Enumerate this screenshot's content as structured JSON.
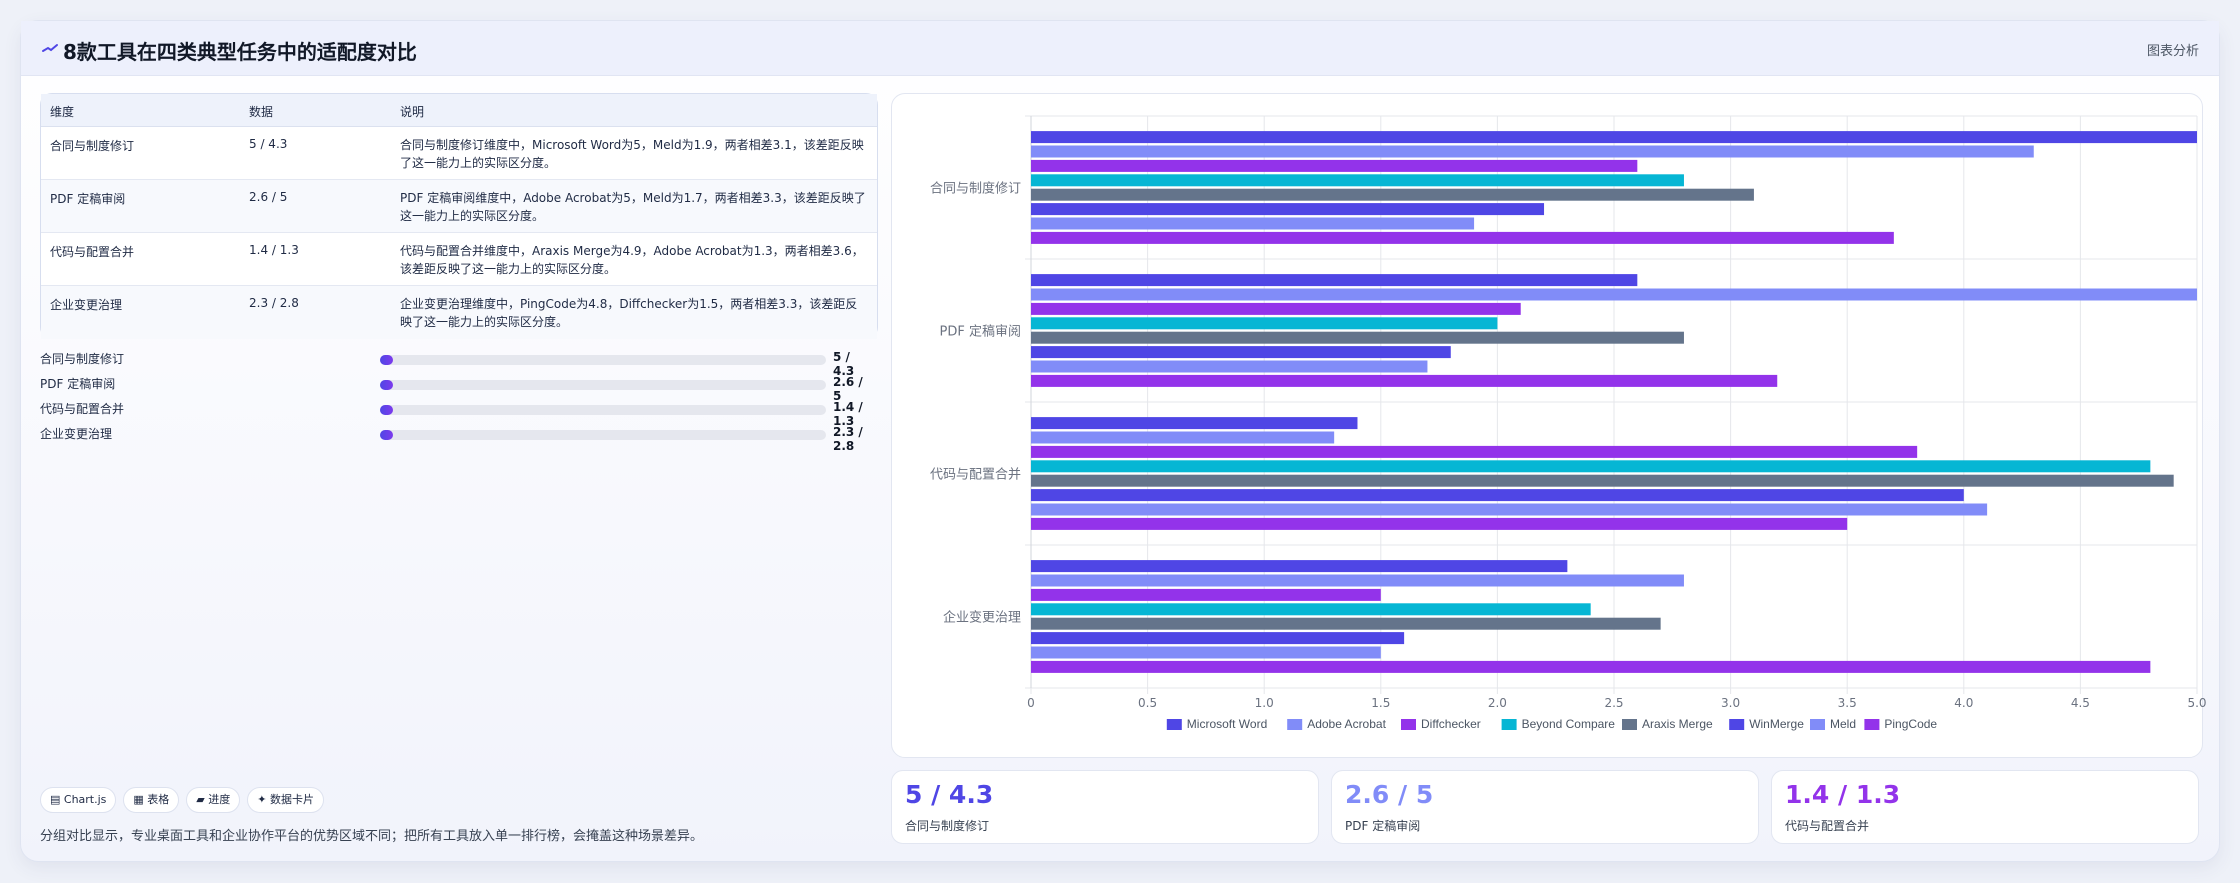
{
  "header": {
    "title": "8款工具在四类典型任务中的适配度对比",
    "right_label": "图表分析"
  },
  "table": {
    "headers": [
      "维度",
      "数据",
      "说明"
    ],
    "rows": [
      {
        "dim": "合同与制度修订",
        "data": "5 / 4.3",
        "desc": "合同与制度修订维度中，Microsoft Word为5，Meld为1.9，两者相差3.1，该差距反映了这一能力上的实际区分度。"
      },
      {
        "dim": "PDF 定稿审阅",
        "data": "2.6 / 5",
        "desc": "PDF 定稿审阅维度中，Adobe Acrobat为5，Meld为1.7，两者相差3.3，该差距反映了这一能力上的实际区分度。"
      },
      {
        "dim": "代码与配置合并",
        "data": "1.4 / 1.3",
        "desc": "代码与配置合并维度中，Araxis Merge为4.9，Adobe Acrobat为1.3，两者相差3.6，该差距反映了这一能力上的实际区分度。"
      },
      {
        "dim": "企业变更治理",
        "data": "2.3 / 2.8",
        "desc": "企业变更治理维度中，PingCode为4.8，Diffchecker为1.5，两者相差3.3，该差距反映了这一能力上的实际区分度。"
      }
    ]
  },
  "progress": [
    {
      "label": "合同与制度修订",
      "value": "5 / 4.3",
      "fill": 0.03
    },
    {
      "label": "PDF 定稿审阅",
      "value": "2.6 / 5",
      "fill": 0.03
    },
    {
      "label": "代码与配置合并",
      "value": "1.4 / 1.3",
      "fill": 0.03
    },
    {
      "label": "企业变更治理",
      "value": "2.3 / 2.8",
      "fill": 0.03
    }
  ],
  "tags": [
    "▤ Chart.js",
    "▦ 表格",
    "▰ 进度",
    "✦ 数据卡片"
  ],
  "note": "分组对比显示，专业桌面工具和企业协作平台的优势区域不同；把所有工具放入单一排行榜，会掩盖这种场景差异。",
  "stats": [
    {
      "value": "5 / 4.3",
      "label": "合同与制度修订",
      "color": "#4f46e5"
    },
    {
      "value": "2.6 / 5",
      "label": "PDF 定稿审阅",
      "color": "#818cf8"
    },
    {
      "value": "1.4 / 1.3",
      "label": "代码与配置合并",
      "color": "#9333ea"
    }
  ],
  "colors": {
    "accent": "#4f46e5"
  },
  "chart_data": {
    "type": "bar",
    "orientation": "horizontal",
    "categories": [
      "合同与制度修订",
      "PDF 定稿审阅",
      "代码与配置合并",
      "企业变更治理"
    ],
    "series": [
      {
        "name": "Microsoft Word",
        "color": "#4f46e5",
        "values": [
          5.0,
          2.6,
          1.4,
          2.3
        ]
      },
      {
        "name": "Adobe Acrobat",
        "color": "#818cf8",
        "values": [
          4.3,
          5.0,
          1.3,
          2.8
        ]
      },
      {
        "name": "Diffchecker",
        "color": "#9333ea",
        "values": [
          2.6,
          2.1,
          3.8,
          1.5
        ]
      },
      {
        "name": "Beyond Compare",
        "color": "#06b6d4",
        "values": [
          2.8,
          2.0,
          4.8,
          2.4
        ]
      },
      {
        "name": "Araxis Merge",
        "color": "#64748b",
        "values": [
          3.1,
          2.8,
          4.9,
          2.7
        ]
      },
      {
        "name": "WinMerge",
        "color": "#4f46e5",
        "values": [
          2.2,
          1.8,
          4.0,
          1.6
        ]
      },
      {
        "name": "Meld",
        "color": "#818cf8",
        "values": [
          1.9,
          1.7,
          4.1,
          1.5
        ]
      },
      {
        "name": "PingCode",
        "color": "#9333ea",
        "values": [
          3.7,
          3.2,
          3.5,
          4.8
        ]
      }
    ],
    "xlim": [
      0,
      5
    ],
    "xticks": [
      "0",
      "0.5",
      "1.0",
      "1.5",
      "2.0",
      "2.5",
      "3.0",
      "3.5",
      "4.0",
      "4.5",
      "5.0"
    ],
    "grid": true,
    "legend_position": "bottom"
  }
}
